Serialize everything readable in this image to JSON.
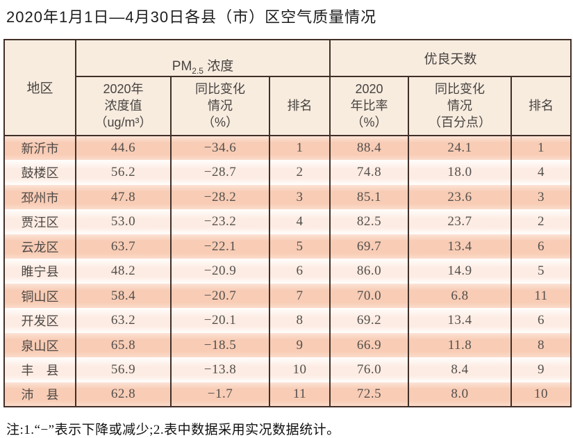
{
  "title": "2020年1月1日—4月30日各县（市）区空气质量情况",
  "table": {
    "region_header": "地区",
    "group_pm": {
      "prefix": "PM",
      "sub": "2.5",
      "suffix": " 浓度"
    },
    "group_good_days": "优良天数",
    "columns": {
      "pm_value": "2020年\n浓度值\n（ug/m³）",
      "pm_change": "同比变化\n情况\n（%）",
      "pm_rank": "排名",
      "good_ratio": "2020\n年比率\n（%）",
      "good_change": "同比变化\n情况\n（百分点）",
      "good_rank": "排名"
    },
    "rows": [
      {
        "region": "新沂市",
        "pm_value": "44.6",
        "pm_change": "−34.6",
        "pm_rank": "1",
        "good_ratio": "88.4",
        "good_change": "24.1",
        "good_rank": "1"
      },
      {
        "region": "鼓楼区",
        "pm_value": "56.2",
        "pm_change": "−28.7",
        "pm_rank": "2",
        "good_ratio": "74.8",
        "good_change": "18.0",
        "good_rank": "4"
      },
      {
        "region": "邳州市",
        "pm_value": "47.8",
        "pm_change": "−28.2",
        "pm_rank": "3",
        "good_ratio": "85.1",
        "good_change": "23.6",
        "good_rank": "3"
      },
      {
        "region": "贾汪区",
        "pm_value": "53.0",
        "pm_change": "−23.2",
        "pm_rank": "4",
        "good_ratio": "82.5",
        "good_change": "23.7",
        "good_rank": "2"
      },
      {
        "region": "云龙区",
        "pm_value": "63.7",
        "pm_change": "−22.1",
        "pm_rank": "5",
        "good_ratio": "69.7",
        "good_change": "13.4",
        "good_rank": "6"
      },
      {
        "region": "睢宁县",
        "pm_value": "48.2",
        "pm_change": "−20.9",
        "pm_rank": "6",
        "good_ratio": "86.0",
        "good_change": "14.9",
        "good_rank": "5"
      },
      {
        "region": "铜山区",
        "pm_value": "58.4",
        "pm_change": "−20.7",
        "pm_rank": "7",
        "good_ratio": "70.0",
        "good_change": "6.8",
        "good_rank": "11"
      },
      {
        "region": "开发区",
        "pm_value": "63.2",
        "pm_change": "−20.1",
        "pm_rank": "8",
        "good_ratio": "69.2",
        "good_change": "13.4",
        "good_rank": "6"
      },
      {
        "region": "泉山区",
        "pm_value": "65.8",
        "pm_change": "−18.5",
        "pm_rank": "9",
        "good_ratio": "66.9",
        "good_change": "11.8",
        "good_rank": "8"
      },
      {
        "region": "丰　县",
        "pm_value": "56.9",
        "pm_change": "−13.8",
        "pm_rank": "10",
        "good_ratio": "76.0",
        "good_change": "8.4",
        "good_rank": "9"
      },
      {
        "region": "沛　县",
        "pm_value": "62.8",
        "pm_change": "−1.7",
        "pm_rank": "11",
        "good_ratio": "72.5",
        "good_change": "8.0",
        "good_rank": "10"
      }
    ]
  },
  "footnote": "注:1.“−”表示下降或减少;2.表中数据采用实况数据统计。",
  "colors": {
    "border": "#402e27",
    "header_bg": "#f8ecdf",
    "row_odd": "#f8ccb5",
    "row_even": "#fdece3",
    "text": "#53504d"
  }
}
